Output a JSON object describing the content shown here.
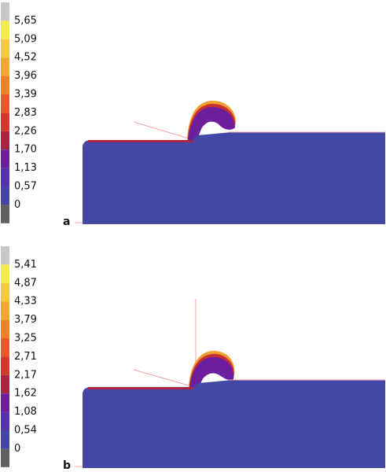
{
  "panels": [
    {
      "label": "a",
      "colorbar_labels": [
        "5,65",
        "5,09",
        "4,52",
        "3,96",
        "3,39",
        "2,83",
        "2,26",
        "1,70",
        "1,13",
        "0,57",
        "0"
      ]
    },
    {
      "label": "b",
      "colorbar_labels": [
        "5,41",
        "4,87",
        "4,33",
        "3,79",
        "3,25",
        "2,71",
        "2,17",
        "1,62",
        "1,08",
        "0,54",
        "0"
      ]
    }
  ]
}
